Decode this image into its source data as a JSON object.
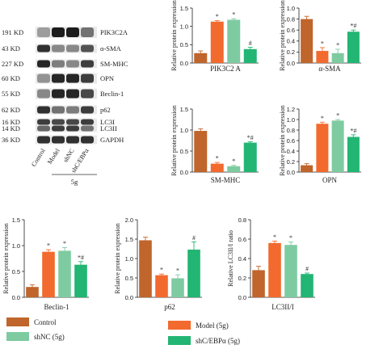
{
  "blot": {
    "kd_labels": [
      "191 KD",
      "43 KD",
      "227 KD",
      "60 KD",
      "55 KD",
      "62 KD",
      "16 KD",
      "14 KD",
      "36 KD"
    ],
    "protein_labels": [
      "PIK3C2A",
      "α-SMA",
      "SM-MHC",
      "OPN",
      "Beclin-1",
      "p62",
      "LC3I",
      "LC3II",
      "GAPDH"
    ],
    "lane_labels": [
      "Control",
      "Model",
      "shNC",
      "shC/EBPα"
    ],
    "group_label": "5g"
  },
  "colors": {
    "Control": "#c0652b",
    "Model (5g)": "#f26a2e",
    "shNC (5g)": "#7ecba1",
    "shC/EBPα (5g)": "#22b573"
  },
  "legend": {
    "items": [
      {
        "label": "Control",
        "color": "#c0652b"
      },
      {
        "label": "shNC (5g)",
        "color": "#7ecba1"
      },
      {
        "label": "Model (5g)",
        "color": "#f26a2e"
      },
      {
        "label": "shC/EBPα (5g)",
        "color": "#22b573"
      }
    ]
  },
  "chart_data": [
    {
      "type": "bar",
      "xlabel": "PIK3C2 A",
      "ylabel": "Relative protein expression",
      "ylim": [
        0,
        1.5
      ],
      "ticks": [
        "0.0",
        "0.5",
        "1.0",
        "1.5"
      ],
      "categories": [
        "Control",
        "Model (5g)",
        "shNC (5g)",
        "shC/EBPα (5g)"
      ],
      "values": [
        0.27,
        1.13,
        1.18,
        0.38
      ],
      "errors": [
        0.06,
        0.03,
        0.03,
        0.05
      ],
      "annotations": [
        "",
        "*",
        "*",
        "#"
      ]
    },
    {
      "type": "bar",
      "xlabel": "α-SMA",
      "ylabel": "Relative protein expression",
      "ylim": [
        0,
        1.0
      ],
      "ticks": [
        "0.0",
        "0.2",
        "0.4",
        "0.6",
        "0.8",
        "1.0"
      ],
      "categories": [
        "Control",
        "Model (5g)",
        "shNC (5g)",
        "shC/EBPα (5g)"
      ],
      "values": [
        0.8,
        0.22,
        0.18,
        0.57
      ],
      "errors": [
        0.05,
        0.06,
        0.07,
        0.03
      ],
      "annotations": [
        "",
        "*",
        "*",
        "*#"
      ]
    },
    {
      "type": "bar",
      "xlabel": "SM-MHC",
      "ylabel": "Relative protein expression",
      "ylim": [
        0,
        1.5
      ],
      "ticks": [
        "0.0",
        "0.5",
        "1.0",
        "1.5"
      ],
      "categories": [
        "Control",
        "Model (5g)",
        "shNC (5g)",
        "shC/EBPα (5g)"
      ],
      "values": [
        0.98,
        0.2,
        0.14,
        0.7
      ],
      "errors": [
        0.05,
        0.03,
        0.02,
        0.02
      ],
      "annotations": [
        "",
        "*",
        "*",
        "*#"
      ]
    },
    {
      "type": "bar",
      "xlabel": "OPN",
      "ylabel": "Relative protein expression",
      "ylim": [
        0,
        1.2
      ],
      "ticks": [
        "0.0",
        "0.2",
        "0.4",
        "0.6",
        "0.8",
        "1.0",
        "1.2"
      ],
      "categories": [
        "Control",
        "Model (5g)",
        "shNC (5g)",
        "shC/EBPα (5g)"
      ],
      "values": [
        0.13,
        0.92,
        0.98,
        0.67
      ],
      "errors": [
        0.03,
        0.03,
        0.02,
        0.04
      ],
      "annotations": [
        "",
        "*",
        "*",
        "*#"
      ]
    },
    {
      "type": "bar",
      "xlabel": "Beclin-1",
      "ylabel": "Relative protein expression",
      "ylim": [
        0,
        1.5
      ],
      "ticks": [
        "0.0",
        "0.5",
        "1.0",
        "1.5"
      ],
      "categories": [
        "Control",
        "Model (5g)",
        "shNC (5g)",
        "shC/EBPα (5g)"
      ],
      "values": [
        0.2,
        0.88,
        0.9,
        0.63
      ],
      "errors": [
        0.04,
        0.04,
        0.06,
        0.06
      ],
      "annotations": [
        "",
        "*",
        "*",
        "*#"
      ]
    },
    {
      "type": "bar",
      "xlabel": "p62",
      "ylabel": "Relative protein expression",
      "ylim": [
        0,
        2.0
      ],
      "ticks": [
        "0.0",
        "0.5",
        "1.0",
        "1.5",
        "2.0"
      ],
      "categories": [
        "Control",
        "Model (5g)",
        "shNC (5g)",
        "shC/EBPα (5g)"
      ],
      "values": [
        1.47,
        0.57,
        0.49,
        1.23
      ],
      "errors": [
        0.08,
        0.03,
        0.09,
        0.2
      ],
      "annotations": [
        "",
        "*",
        "*",
        "#"
      ]
    },
    {
      "type": "bar",
      "xlabel": "LC3II/I",
      "ylabel": "Relative LC3II/I ratio",
      "ylim": [
        0,
        0.8
      ],
      "ticks": [
        "0.0",
        "0.2",
        "0.4",
        "0.6",
        "0.8"
      ],
      "categories": [
        "Control",
        "Model (5g)",
        "shNC (5g)",
        "shC/EBPα (5g)"
      ],
      "values": [
        0.28,
        0.56,
        0.54,
        0.24
      ],
      "errors": [
        0.04,
        0.02,
        0.03,
        0.01
      ],
      "annotations": [
        "",
        "*",
        "*",
        "#"
      ]
    }
  ]
}
